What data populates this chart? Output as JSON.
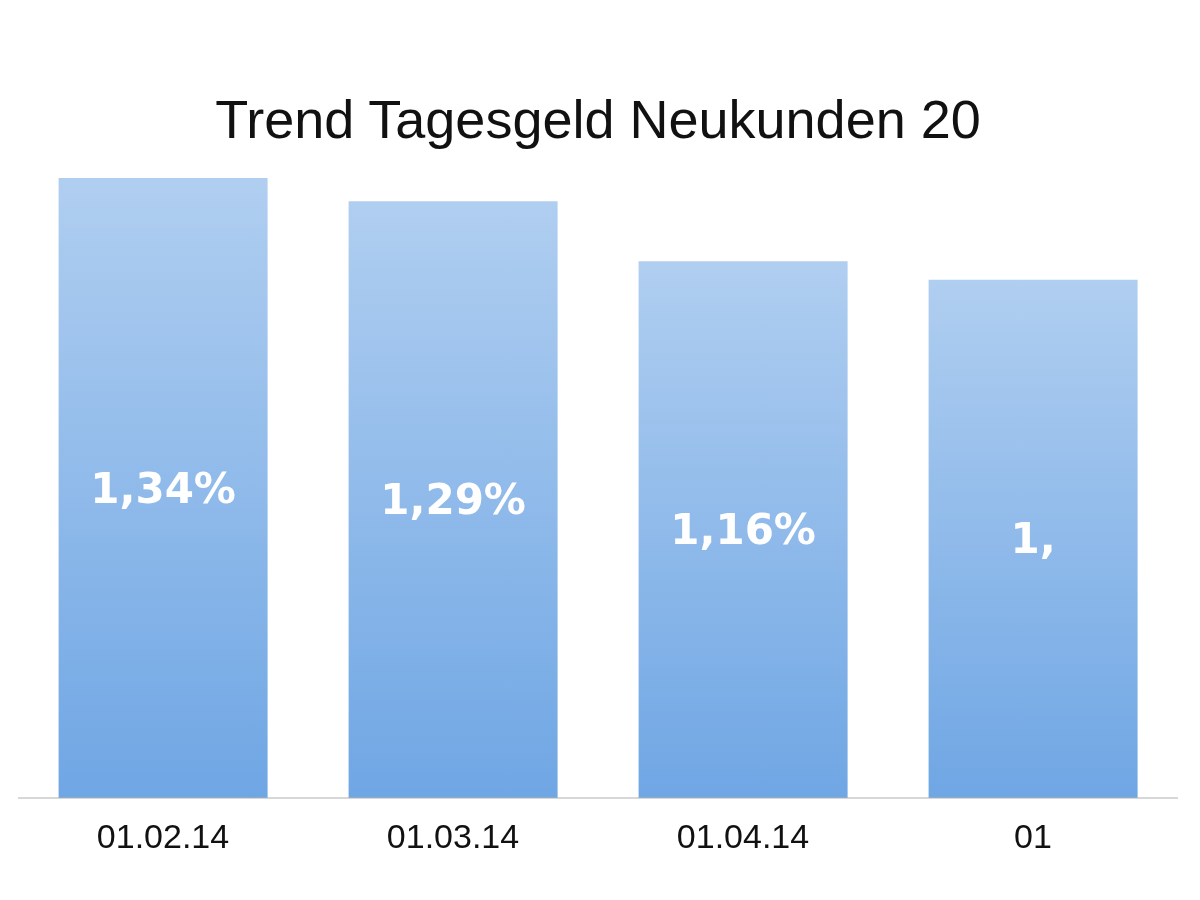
{
  "chart_data": {
    "type": "bar",
    "title": "Trend Tagesgeld Neukunden 20",
    "categories": [
      "01.02.14",
      "01.03.14",
      "01.04.14",
      "01"
    ],
    "values": [
      1.34,
      1.29,
      1.16,
      1.12
    ],
    "value_labels": [
      "1,34%",
      "1,29%",
      "1,16%",
      "1,"
    ],
    "color": "#6fa6e4"
  }
}
